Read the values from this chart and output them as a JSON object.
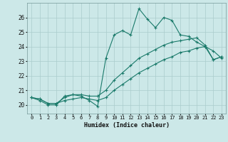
{
  "xlabel": "Humidex (Indice chaleur)",
  "bg_color": "#cce8e8",
  "grid_color": "#aacccc",
  "line_color": "#1a7a6a",
  "x_ticks": [
    0,
    1,
    2,
    3,
    4,
    5,
    6,
    7,
    8,
    9,
    10,
    11,
    12,
    13,
    14,
    15,
    16,
    17,
    18,
    19,
    20,
    21,
    22,
    23
  ],
  "y_ticks": [
    20,
    21,
    22,
    23,
    24,
    25,
    26
  ],
  "xlim": [
    -0.5,
    23.5
  ],
  "ylim": [
    19.4,
    27.0
  ],
  "series1_y": [
    20.5,
    20.3,
    20.0,
    20.0,
    20.6,
    20.7,
    20.6,
    20.3,
    19.9,
    23.2,
    24.8,
    25.1,
    24.8,
    26.6,
    25.9,
    25.3,
    26.0,
    25.8,
    24.8,
    24.7,
    24.3,
    24.0,
    23.7,
    23.2
  ],
  "series2_y": [
    20.5,
    20.4,
    20.1,
    20.1,
    20.5,
    20.7,
    20.7,
    20.6,
    20.6,
    21.0,
    21.7,
    22.2,
    22.7,
    23.2,
    23.5,
    23.8,
    24.1,
    24.3,
    24.4,
    24.5,
    24.6,
    24.1,
    23.1,
    23.3
  ],
  "series3_y": [
    20.5,
    20.4,
    20.1,
    20.1,
    20.3,
    20.4,
    20.5,
    20.4,
    20.3,
    20.5,
    21.0,
    21.4,
    21.8,
    22.2,
    22.5,
    22.8,
    23.1,
    23.3,
    23.6,
    23.7,
    23.9,
    24.0,
    23.1,
    23.3
  ]
}
